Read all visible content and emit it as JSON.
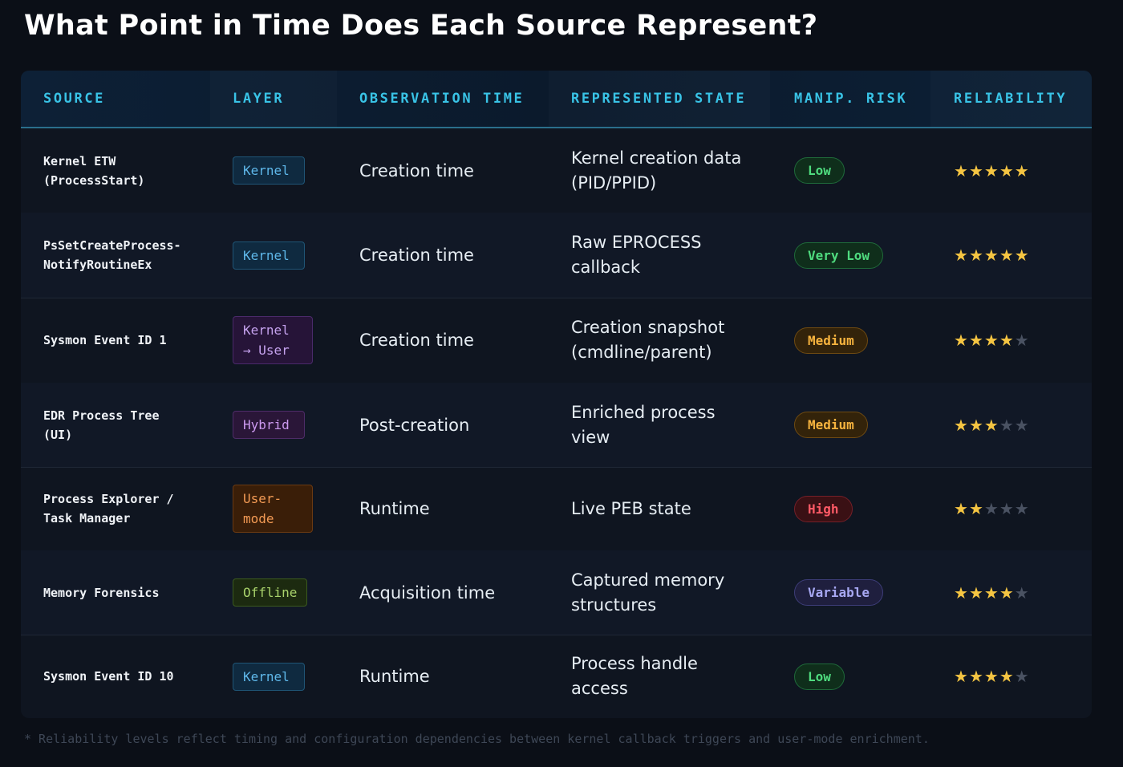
{
  "title": "What Point in Time Does Each Source Represent?",
  "colors": {
    "header_text": "#39c3e6",
    "star_filled": "#f5c542",
    "star_empty": "#4a5262"
  },
  "columns": [
    "SOURCE",
    "LAYER",
    "OBSERVATION TIME",
    "REPRESENTED STATE",
    "MANIP. RISK",
    "RELIABILITY"
  ],
  "rows": [
    {
      "source": "Kernel ETW\n(ProcessStart)",
      "layer": "Kernel",
      "layer_style": "kernel",
      "observation": "Creation time",
      "state": "Kernel creation data\n(PID/PPID)",
      "risk": "Low",
      "risk_style": "low",
      "stars": 5
    },
    {
      "source": "PsSetCreateProcess-\nNotifyRoutineEx",
      "layer": "Kernel",
      "layer_style": "kernel",
      "observation": "Creation time",
      "state": "Raw EPROCESS\ncallback",
      "risk": "Very Low",
      "risk_style": "verylow",
      "stars": 5
    },
    {
      "source": "Sysmon Event ID 1",
      "layer": "Kernel\n→ User",
      "layer_style": "kernel-user",
      "observation": "Creation time",
      "state": "Creation snapshot\n(cmdline/parent)",
      "risk": "Medium",
      "risk_style": "medium",
      "stars": 4
    },
    {
      "source": "EDR Process Tree\n(UI)",
      "layer": "Hybrid",
      "layer_style": "hybrid",
      "observation": "Post-creation",
      "state": "Enriched process\nview",
      "risk": "Medium",
      "risk_style": "medium",
      "stars": 3
    },
    {
      "source": "Process Explorer /\nTask Manager",
      "layer": "User-\nmode",
      "layer_style": "usermode",
      "observation": "Runtime",
      "state": "Live PEB state",
      "risk": "High",
      "risk_style": "high",
      "stars": 2
    },
    {
      "source": "Memory Forensics",
      "layer": "Offline",
      "layer_style": "offline",
      "observation": "Acquisition time",
      "state": "Captured memory\nstructures",
      "risk": "Variable",
      "risk_style": "variable",
      "stars": 4
    },
    {
      "source": "Sysmon Event ID 10",
      "layer": "Kernel",
      "layer_style": "kernel",
      "observation": "Runtime",
      "state": "Process handle\naccess",
      "risk": "Low",
      "risk_style": "low",
      "stars": 4
    }
  ],
  "star_max": 5,
  "footnote": "* Reliability levels reflect timing and configuration dependencies between kernel callback triggers and user-mode enrichment."
}
